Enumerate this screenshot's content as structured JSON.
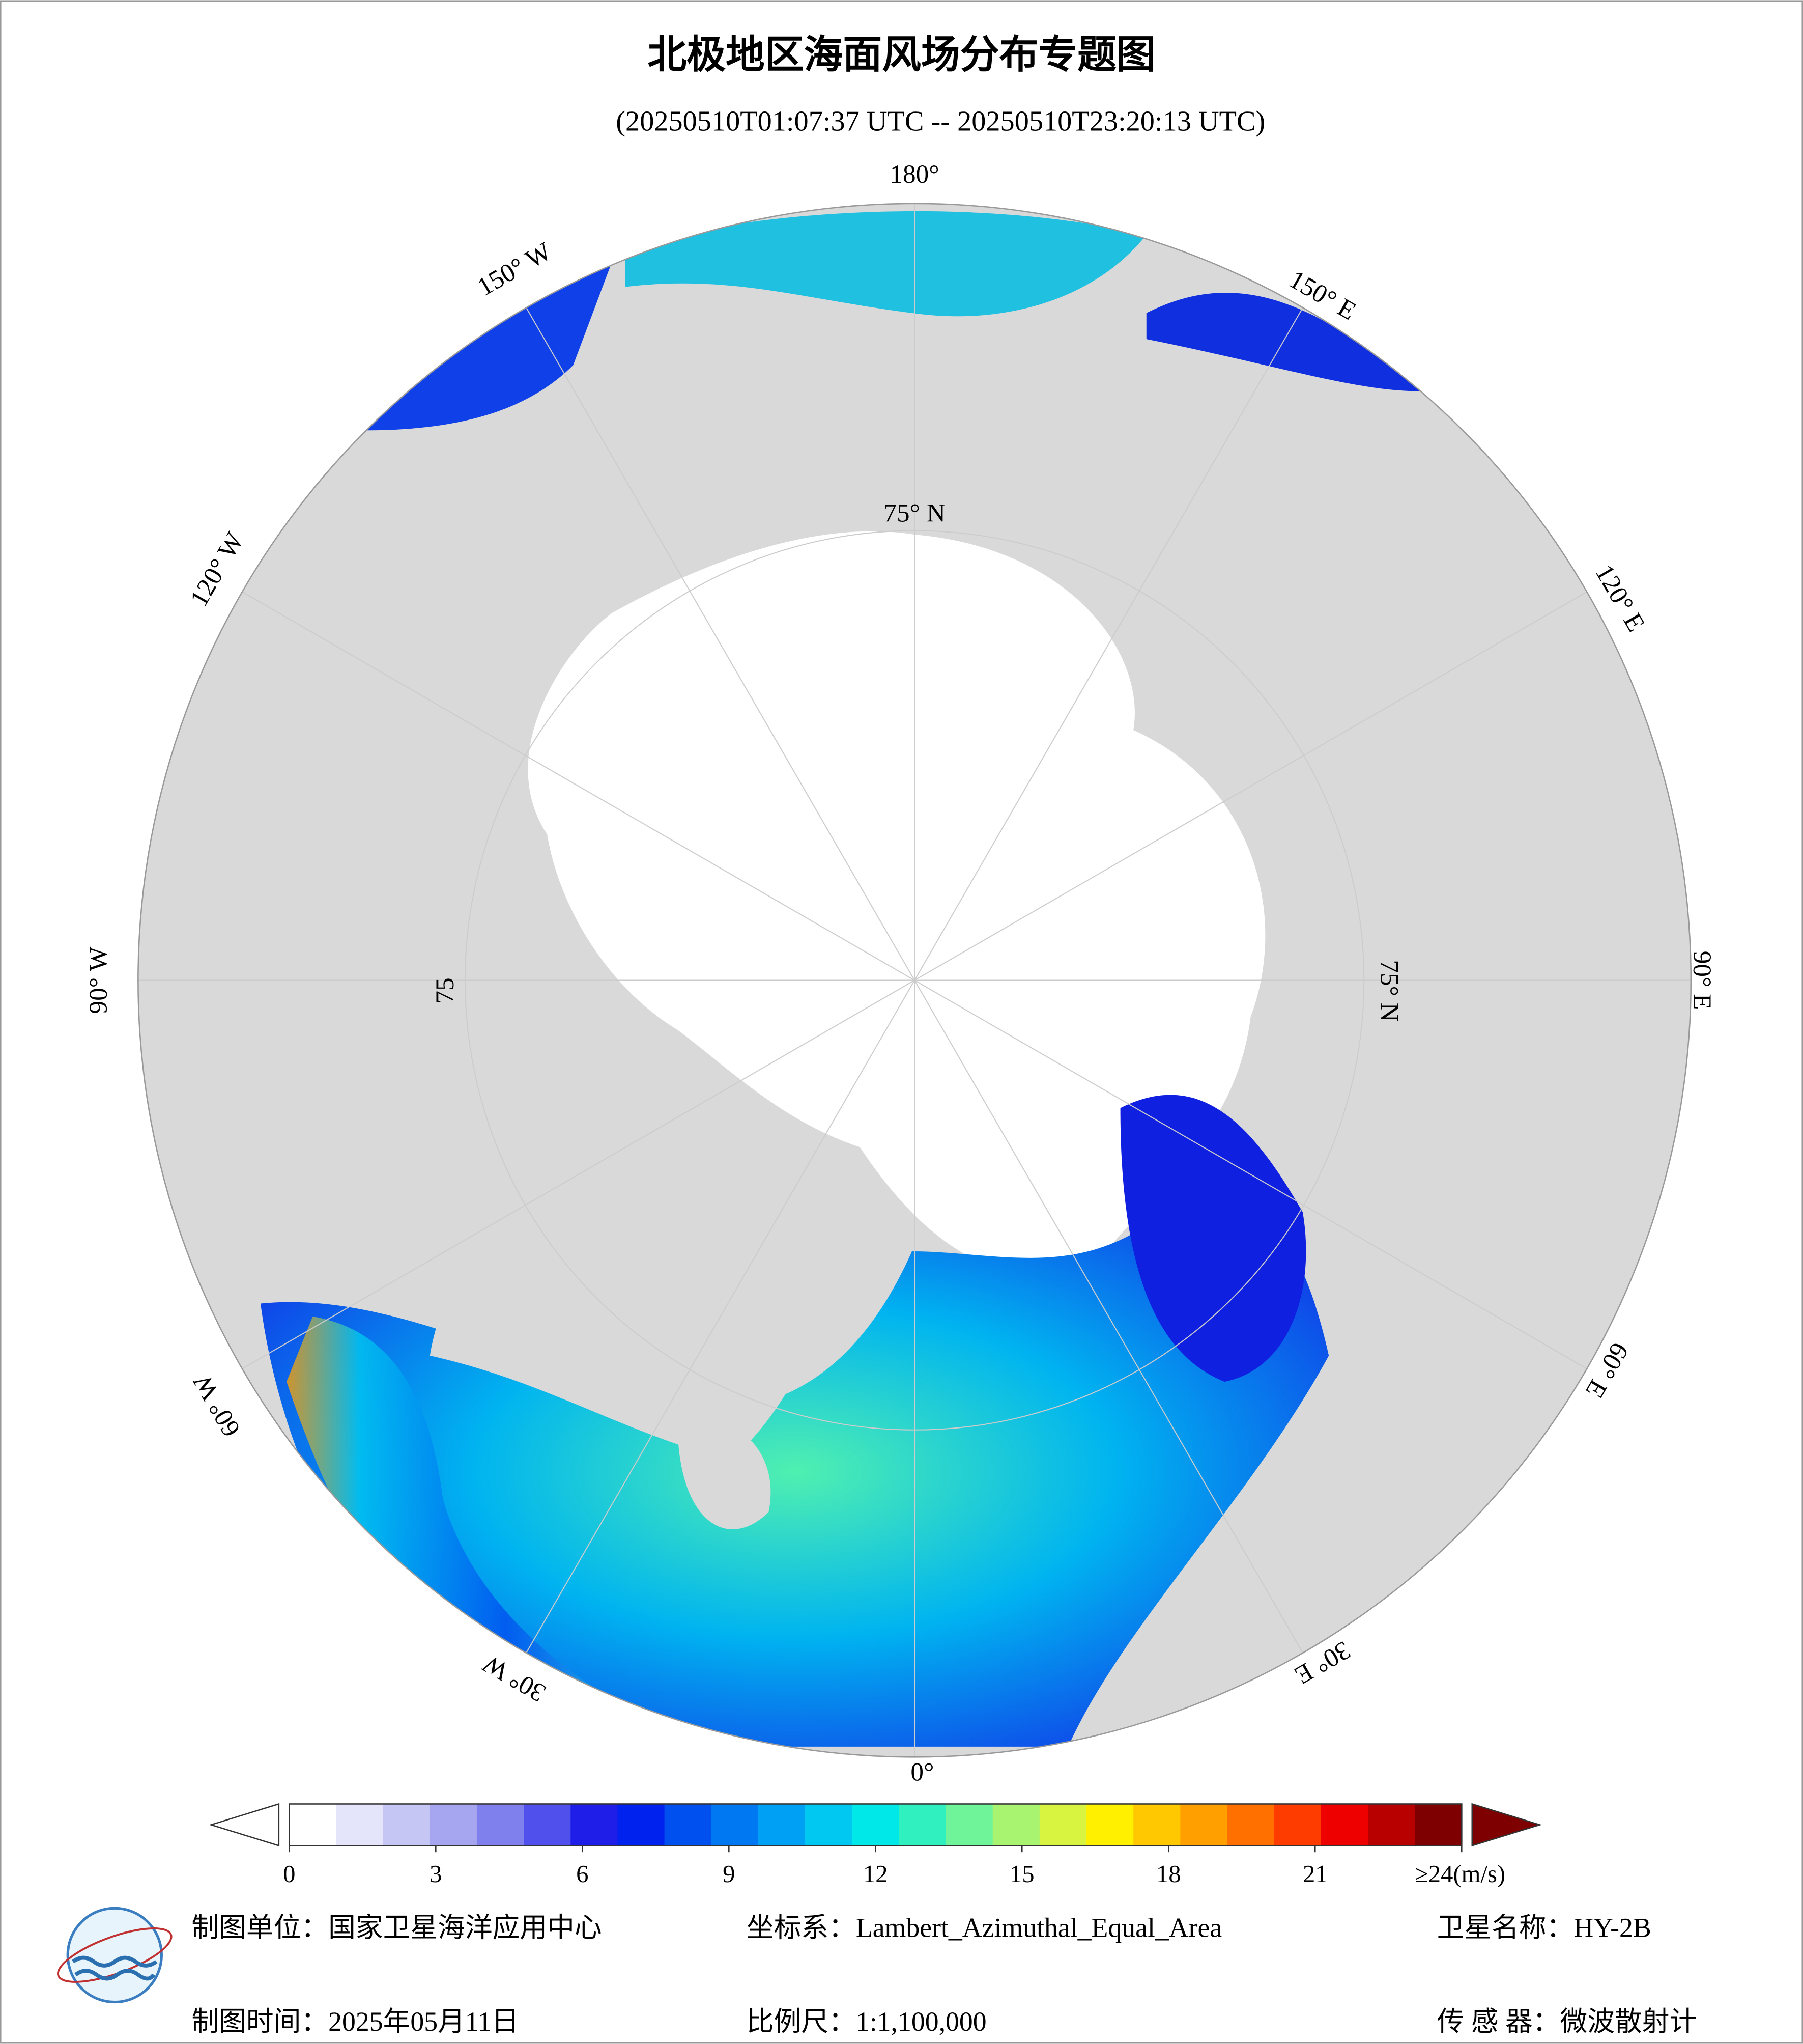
{
  "header": {
    "title": "北极地区海面风场分布专题图",
    "subtitle": "(20250510T01:07:37 UTC -- 20250510T23:20:13 UTC)"
  },
  "map": {
    "meridian_labels": [
      "180°",
      "150° W",
      "150° E",
      "120° W",
      "120° E",
      "90° W",
      "90° E",
      "60° W",
      "60° E",
      "30° W",
      "30° E",
      "0°"
    ],
    "parallel_labels": [
      "75° N",
      "75° N",
      "75"
    ]
  },
  "colorbar": {
    "range": [
      0,
      24
    ],
    "ticks": [
      0,
      3,
      6,
      9,
      12,
      15,
      18,
      21,
      {
        "value": 24,
        "label": "≥24(m/s)"
      }
    ],
    "colors": [
      "#ffffff",
      "#e4e4fb",
      "#c6c6f5",
      "#a5a5f0",
      "#7f7fee",
      "#5050ec",
      "#1e1ee8",
      "#0022ee",
      "#0050f0",
      "#0078f2",
      "#00a0f4",
      "#00c8f0",
      "#00e8e8",
      "#30f0c0",
      "#70f49a",
      "#a8f470",
      "#d8f440",
      "#fff000",
      "#ffc800",
      "#ffa000",
      "#ff7000",
      "#ff3c00",
      "#ee0000",
      "#b80000",
      "#7f0000"
    ]
  },
  "footer": {
    "unit": "制图单位：国家卫星海洋应用中心",
    "crs": "坐标系：Lambert_Azimuthal_Equal_Area",
    "satellite": "卫星名称：HY-2B",
    "date": "制图时间：2025年05月11日",
    "scale": "比例尺：1:1,100,000",
    "sensor": "传 感 器：微波散射计"
  }
}
